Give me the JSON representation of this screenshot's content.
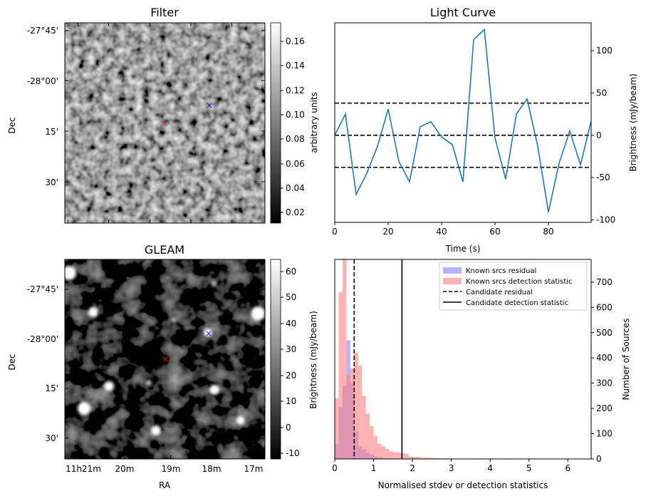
{
  "panels": {
    "filter": {
      "title": "Filter",
      "ylabel": "Dec",
      "yticks": [
        "-27°45'",
        "-28°00'",
        "15'",
        "30'"
      ],
      "colorbar": {
        "label": "arbitrary units",
        "ticks": [
          "0.16",
          "0.14",
          "0.12",
          "0.10",
          "0.08",
          "0.06",
          "0.04",
          "0.02"
        ],
        "range": [
          0.012,
          0.173
        ]
      }
    },
    "gleam": {
      "title": "GLEAM",
      "ylabel": "Dec",
      "xlabel": "RA",
      "xticks": [
        "11h21m",
        "20m",
        "19m",
        "18m",
        "17m"
      ],
      "yticks": [
        "-27°45'",
        "-28°00'",
        "15'",
        "30'"
      ],
      "colorbar": {
        "label": "Brightness (mJy/beam)",
        "ticks": [
          "60",
          "50",
          "40",
          "30",
          "20",
          "10",
          "0",
          "-10"
        ],
        "range": [
          -12.5,
          64
        ]
      }
    }
  },
  "markers": {
    "red": "#e8120c",
    "blue": "#1414e0"
  },
  "chart_data": [
    {
      "type": "line",
      "title": "Light Curve",
      "xlabel": "Time (s)",
      "ylabel": "Brightness (mJy/beam)",
      "xlim": [
        0,
        96
      ],
      "ylim": [
        -103,
        133
      ],
      "xticks": [
        0,
        20,
        40,
        60,
        80
      ],
      "yticks": [
        100,
        50,
        0,
        -50,
        -100
      ],
      "series": [
        {
          "color": "#1f77b4",
          "x": [
            0,
            4,
            8,
            12,
            16,
            20,
            24,
            28,
            32,
            36,
            40,
            44,
            48,
            52,
            56,
            60,
            64,
            68,
            72,
            76,
            80,
            84,
            88,
            92,
            96
          ],
          "y": [
            0,
            25,
            -70,
            -45,
            -13,
            31,
            -31,
            -55,
            10,
            16,
            -2,
            -11,
            -55,
            113,
            125,
            -3,
            -52,
            25,
            43,
            -13,
            -91,
            -33,
            5,
            -35,
            17
          ]
        }
      ],
      "hlines": [
        {
          "y": 38,
          "style": "dashed"
        },
        {
          "y": 0,
          "style": "dashed"
        },
        {
          "y": -38,
          "style": "dashed"
        }
      ]
    },
    {
      "type": "bar",
      "xlabel": "Normalised stdev or detection statistics",
      "ylabel_left": "Brightness (mJy/beam)",
      "ylabel_right": "Number of Sources",
      "xlim": [
        0,
        6.6
      ],
      "ylim": [
        0,
        790
      ],
      "xticks": [
        0,
        1,
        2,
        3,
        4,
        5,
        6
      ],
      "yticks": [
        0,
        100,
        200,
        300,
        400,
        500,
        600,
        700
      ],
      "bin_width": 0.1,
      "series": [
        {
          "name": "Known srcs residual",
          "color": "#8080ff",
          "bin_starts": [
            0,
            0.1,
            0.2,
            0.3,
            0.4,
            0.5,
            0.6,
            0.7,
            0.8,
            0.9,
            1.0,
            1.1,
            1.2,
            1.3
          ],
          "counts": [
            60,
            205,
            290,
            470,
            300,
            110,
            50,
            38,
            25,
            18,
            12,
            6,
            3,
            2
          ]
        },
        {
          "name": "Known srcs detection statistic",
          "color": "#ff7f7f",
          "bin_starts": [
            0,
            0.1,
            0.2,
            0.3,
            0.4,
            0.5,
            0.6,
            0.7,
            0.8,
            0.9,
            1.0,
            1.1,
            1.2,
            1.3,
            1.4,
            1.5,
            1.6,
            1.7,
            1.8,
            1.9,
            2.0,
            2.1,
            2.2,
            2.3,
            2.4,
            2.5,
            2.6,
            2.7,
            2.8,
            2.9,
            3.0,
            3.1,
            3.2,
            3.3,
            3.4,
            3.5,
            3.6,
            3.7,
            3.8,
            3.9,
            4.4,
            5.9
          ],
          "counts": [
            240,
            660,
            800,
            330,
            360,
            420,
            370,
            250,
            180,
            130,
            90,
            60,
            50,
            40,
            30,
            27,
            25,
            23,
            20,
            10,
            8,
            8,
            5,
            6,
            4,
            3,
            3,
            2,
            2,
            2,
            1,
            1,
            1,
            2,
            1,
            1,
            1,
            2,
            1,
            1,
            2,
            1
          ]
        }
      ],
      "vlines": [
        {
          "name": "Candidate residual",
          "x": 0.5,
          "style": "dashed"
        },
        {
          "name": "Candidate detection statistic",
          "x": 1.73,
          "style": "solid"
        }
      ],
      "legend": "top-right"
    }
  ]
}
